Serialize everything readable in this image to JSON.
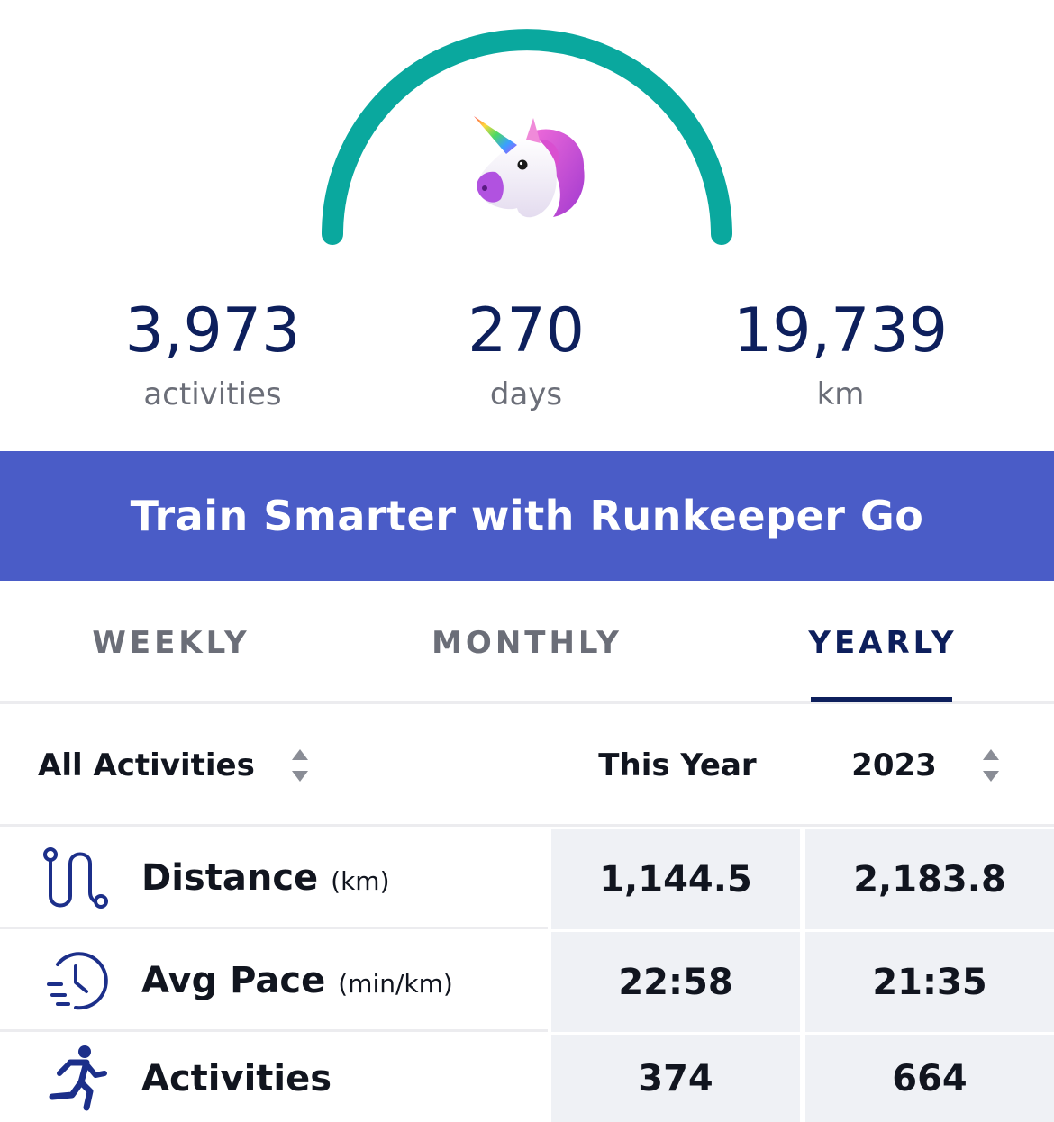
{
  "header": {
    "badge_icon": "unicorn-icon",
    "gauge_color": "#0aa89e",
    "stats": [
      {
        "value": "3,973",
        "unit": "activities"
      },
      {
        "value": "270",
        "unit": "days"
      },
      {
        "value": "19,739",
        "unit": "km"
      }
    ]
  },
  "banner": {
    "label": "Train Smarter with Runkeeper Go",
    "color": "#4a5cc7"
  },
  "tabs": [
    {
      "label": "WEEKLY",
      "selected": false
    },
    {
      "label": "MONTHLY",
      "selected": false
    },
    {
      "label": "YEARLY",
      "selected": true
    }
  ],
  "table": {
    "filter_label": "All Activities",
    "columns": [
      "This Year",
      "2023"
    ],
    "rows": [
      {
        "icon": "route-icon",
        "label": "Distance",
        "unit": "(km)",
        "values": [
          "1,144.5",
          "2,183.8"
        ]
      },
      {
        "icon": "pace-clock-icon",
        "label": "Avg Pace",
        "unit": "(min/km)",
        "values": [
          "22:58",
          "21:35"
        ]
      },
      {
        "icon": "runner-icon",
        "label": "Activities",
        "unit": "",
        "values": [
          "374",
          "664"
        ]
      }
    ]
  }
}
